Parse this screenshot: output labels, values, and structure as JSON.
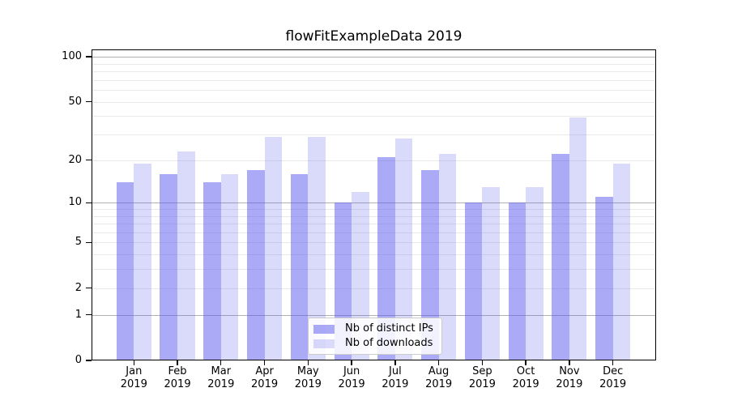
{
  "chart_data": {
    "type": "bar",
    "title": "flowFitExampleData 2019",
    "xlabel": "",
    "ylabel": "",
    "months": [
      "Jan",
      "Feb",
      "Mar",
      "Apr",
      "May",
      "Jun",
      "Jul",
      "Aug",
      "Sep",
      "Oct",
      "Nov",
      "Dec"
    ],
    "year": "2019",
    "series": [
      {
        "name": "Nb of distinct IPs",
        "color": "#5555ee",
        "opacity": 0.5,
        "values": [
          14,
          16,
          14,
          17,
          16,
          10,
          21,
          17,
          10,
          10,
          22,
          11
        ]
      },
      {
        "name": "Nb of downloads",
        "color": "#5555ee",
        "opacity": 0.22,
        "values": [
          19,
          23,
          16,
          29,
          29,
          12,
          28,
          22,
          13,
          13,
          39,
          19
        ]
      }
    ],
    "yaxis": {
      "scale": "log1p",
      "min": 0,
      "max": 112,
      "tick_values": [
        100,
        50,
        20,
        10,
        5,
        2,
        1,
        0
      ],
      "tick_labels": [
        "100",
        "50",
        "20",
        "10",
        "5",
        "2",
        "1",
        "0"
      ],
      "major_grid_values": [
        1,
        10,
        100
      ],
      "minor_grid_values": [
        2,
        3,
        4,
        5,
        6,
        7,
        8,
        9,
        20,
        30,
        40,
        50,
        60,
        70,
        80,
        90
      ]
    },
    "legend": {
      "location": "lower center"
    },
    "colors": {
      "bar_base": "#5555ee",
      "major_grid": "#b0b0b0",
      "minor_grid": "#e9e9e9",
      "spine": "#000000",
      "background": "#ffffff"
    }
  }
}
